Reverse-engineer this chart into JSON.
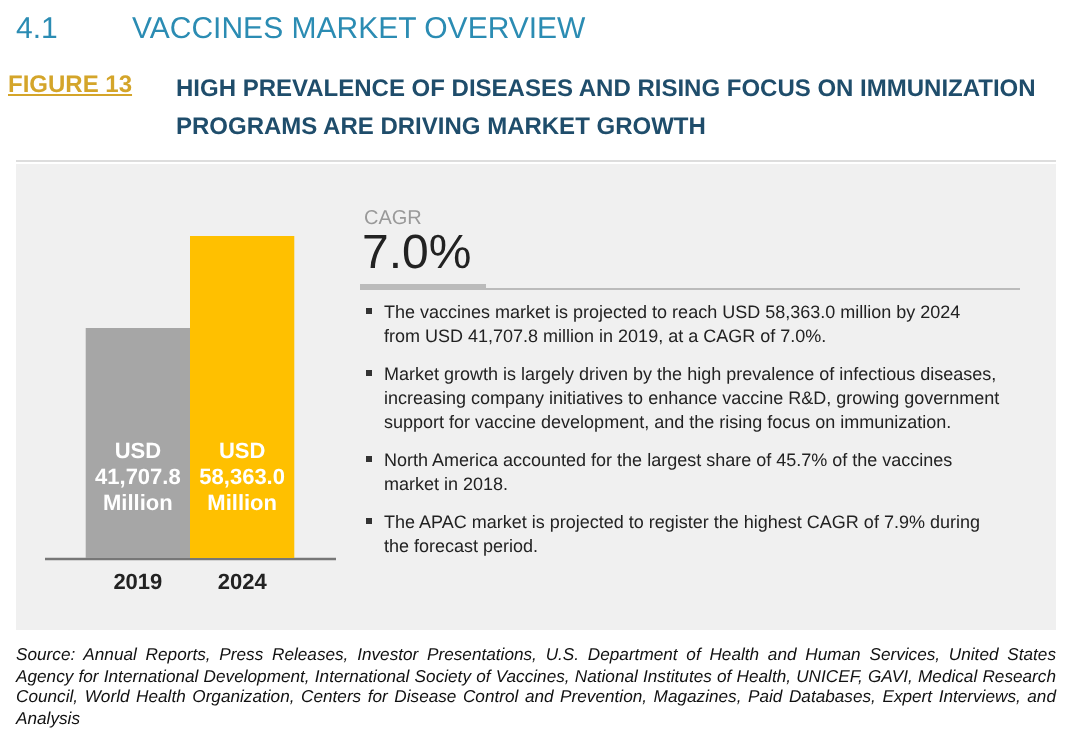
{
  "chart_data": {
    "type": "bar",
    "title": "HIGH PREVALENCE OF DISEASES AND RISING FOCUS ON IMMUNIZATION PROGRAMS ARE DRIVING MARKET GROWTH",
    "categories": [
      "2019",
      "2024"
    ],
    "values": [
      41707.8,
      58363.0
    ],
    "colors": [
      "#a6a6a6",
      "#ffc000"
    ],
    "value_labels": [
      "USD 41,707.8 Million",
      "USD 58,363.0 Million"
    ],
    "tick_labels": "x",
    "annotations": [
      "4.1",
      "VACCINES MARKET OVERVIEW",
      "FIGURE 13",
      "CAGR",
      "7.0%",
      "The vaccines market is projected to reach USD 58,363.0 million by 2024 from USD 41,707.8 million in 2019, at a CAGR of 7.0%.",
      "Market growth is largely driven by the high prevalence of infectious diseases, increasing company initiatives to enhance vaccine R&D, growing government support for vaccine development, and the rising focus on immunization.",
      "North America accounted for the largest share of 45.7% of the vaccines market in 2018.",
      "The APAC market is projected to register the highest CAGR of 7.9% during the forecast period.",
      "Source: Annual Reports, Press Releases, Investor Presentations, U.S. Department of Health and Human Services, United States Agency for International Development, International Society of Vaccines, National Institutes of Health, UNICEF, GAVI, Medical Research Council, World Health Organization, Centers for Disease Control and Prevention, Magazines, Paid Databases, Expert Interviews, and Analysis"
    ]
  }
}
